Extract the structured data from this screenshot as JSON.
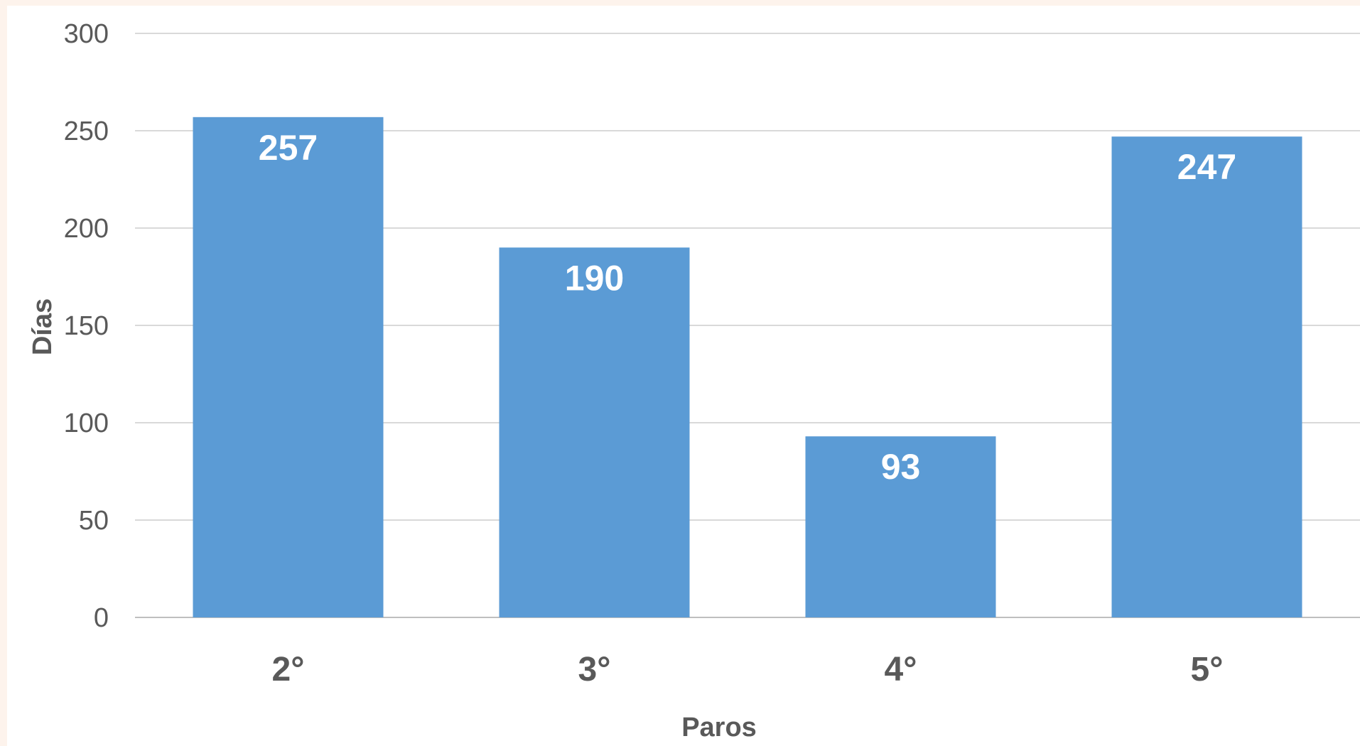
{
  "chart_data": {
    "type": "bar",
    "categories": [
      "2°",
      "3°",
      "4°",
      "5°"
    ],
    "values": [
      257,
      190,
      93,
      247
    ],
    "xlabel": "Paros",
    "ylabel": "Días",
    "ylim": [
      0,
      300
    ],
    "yticks": [
      0,
      50,
      100,
      150,
      200,
      250,
      300
    ],
    "grid": true,
    "legend": "none",
    "data_labels": "inside-top",
    "bar_color": "#5b9bd5",
    "grid_color": "#d9d9d9",
    "text_color": "#595959",
    "label_color": "#ffffff"
  }
}
